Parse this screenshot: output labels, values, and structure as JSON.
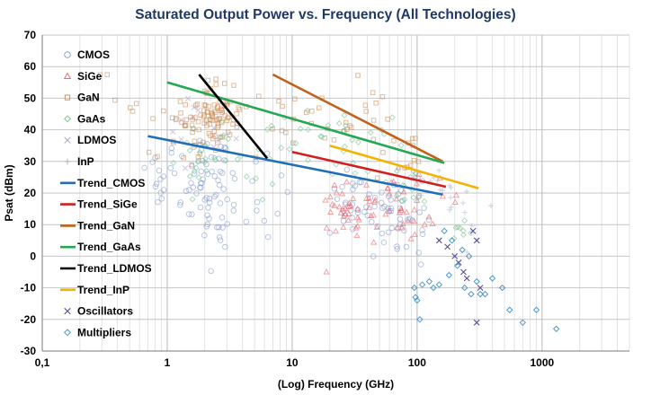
{
  "chart_data": {
    "type": "scatter",
    "title": "Saturated Output Power vs. Frequency (All Technologies)",
    "xlabel": "(Log) Frequency (GHz)",
    "ylabel": "Psat (dBm)",
    "xscale": "log",
    "xlim": [
      0.1,
      5000
    ],
    "ylim": [
      -30,
      70
    ],
    "xticks": [
      0.1,
      1,
      10,
      100,
      1000
    ],
    "xtick_labels": [
      "0,1",
      "1",
      "10",
      "100",
      "1000"
    ],
    "yticks": [
      -30,
      -20,
      -10,
      0,
      10,
      20,
      30,
      40,
      50,
      60,
      70
    ],
    "grid": true,
    "legend_position": "left",
    "colors": {
      "CMOS": "#7f97cc",
      "SiGe": "#e8595f",
      "GaN": "#c8874e",
      "GaAs": "#6cc08c",
      "LDMOS": "#b39bc8",
      "InP": "#b0b0c8",
      "Trend_CMOS": "#1f6fb8",
      "Trend_SiGe": "#d11f1f",
      "Trend_GaN": "#c0621c",
      "Trend_GaAs": "#25a853",
      "Trend_LDMOS": "#000000",
      "Trend_InP": "#f2b400",
      "Oscillators": "#4a3c8c",
      "Multipliers": "#3d8fc8"
    },
    "legend": [
      {
        "label": "CMOS",
        "kind": "marker",
        "marker": "circle"
      },
      {
        "label": "SiGe",
        "kind": "marker",
        "marker": "triangle"
      },
      {
        "label": "GaN",
        "kind": "marker",
        "marker": "square"
      },
      {
        "label": "GaAs",
        "kind": "marker",
        "marker": "diamond"
      },
      {
        "label": "LDMOS",
        "kind": "marker",
        "marker": "x"
      },
      {
        "label": "InP",
        "kind": "marker",
        "marker": "plus"
      },
      {
        "label": "Trend_CMOS",
        "kind": "line"
      },
      {
        "label": "Trend_SiGe",
        "kind": "line"
      },
      {
        "label": "Trend_GaN",
        "kind": "line"
      },
      {
        "label": "Trend_GaAs",
        "kind": "line"
      },
      {
        "label": "Trend_LDMOS",
        "kind": "line"
      },
      {
        "label": "Trend_InP",
        "kind": "line"
      },
      {
        "label": "Oscillators",
        "kind": "marker",
        "marker": "x"
      },
      {
        "label": "Multipliers",
        "kind": "marker",
        "marker": "diamond"
      }
    ],
    "trends": [
      {
        "name": "Trend_CMOS",
        "x": [
          0.7,
          160
        ],
        "y": [
          38,
          19.5
        ]
      },
      {
        "name": "Trend_SiGe",
        "x": [
          10,
          170
        ],
        "y": [
          33,
          22
        ]
      },
      {
        "name": "Trend_GaN",
        "x": [
          7,
          160
        ],
        "y": [
          57.5,
          30
        ]
      },
      {
        "name": "Trend_GaAs",
        "x": [
          1,
          165
        ],
        "y": [
          55,
          29.5
        ]
      },
      {
        "name": "Trend_LDMOS",
        "x": [
          1.8,
          6.3
        ],
        "y": [
          57.5,
          31
        ]
      },
      {
        "name": "Trend_InP",
        "x": [
          20,
          310
        ],
        "y": [
          35,
          21.5
        ]
      }
    ],
    "series": [
      {
        "name": "CMOS",
        "clusters": [
          [
            0.85,
            25,
            0.08,
            6,
            16
          ],
          [
            1.9,
            23,
            0.12,
            8,
            30
          ],
          [
            2.5,
            22,
            0.1,
            10,
            28
          ],
          [
            5,
            20,
            0.15,
            8,
            14
          ],
          [
            28,
            17,
            0.12,
            7,
            25
          ],
          [
            60,
            14,
            0.12,
            8,
            28
          ],
          [
            90,
            13,
            0.1,
            9,
            20
          ],
          [
            2.4,
            2,
            0.06,
            5,
            6
          ]
        ]
      },
      {
        "name": "SiGe",
        "clusters": [
          [
            25,
            16,
            0.08,
            5,
            22
          ],
          [
            40,
            14,
            0.1,
            6,
            18
          ],
          [
            60,
            16,
            0.08,
            5,
            16
          ],
          [
            90,
            12,
            0.1,
            6,
            12
          ],
          [
            150,
            18,
            0.08,
            4,
            6
          ]
        ]
      },
      {
        "name": "GaN",
        "clusters": [
          [
            2.1,
            43,
            0.1,
            5,
            70
          ],
          [
            3,
            47,
            0.1,
            5,
            26
          ],
          [
            1.2,
            40,
            0.12,
            6,
            14
          ],
          [
            0.35,
            52,
            0.12,
            5,
            6
          ],
          [
            10,
            42,
            0.18,
            6,
            16
          ],
          [
            35,
            42,
            0.15,
            6,
            18
          ],
          [
            80,
            32,
            0.12,
            4,
            10
          ]
        ]
      },
      {
        "name": "GaAs",
        "clusters": [
          [
            2,
            32,
            0.12,
            6,
            24
          ],
          [
            8,
            33,
            0.15,
            6,
            16
          ],
          [
            30,
            34,
            0.15,
            5,
            22
          ],
          [
            90,
            24,
            0.12,
            6,
            14
          ],
          [
            220,
            8,
            0.05,
            3,
            8
          ]
        ]
      },
      {
        "name": "LDMOS",
        "clusters": [
          [
            1.5,
            38,
            0.12,
            6,
            8
          ],
          [
            3,
            35,
            0.1,
            4,
            5
          ]
        ]
      },
      {
        "name": "InP",
        "clusters": [
          [
            150,
            22,
            0.1,
            4,
            10
          ],
          [
            250,
            15,
            0.1,
            5,
            8
          ]
        ]
      },
      {
        "name": "Oscillators",
        "x": [
          150,
          175,
          200,
          215,
          235,
          250,
          280,
          300,
          320,
          300
        ],
        "y": [
          5,
          3,
          0,
          -2,
          -5,
          -7,
          8,
          5,
          -10,
          -21
        ]
      },
      {
        "name": "Multipliers",
        "x": [
          95,
          97,
          100,
          110,
          125,
          150,
          180,
          210,
          240,
          270,
          300,
          320,
          350,
          400,
          480,
          550,
          700,
          900,
          1300,
          105,
          135,
          165,
          190,
          230,
          260
        ],
        "y": [
          -10,
          -13,
          -14,
          -9,
          -8,
          -9,
          -6,
          -3,
          -10,
          -12,
          -8,
          -12,
          -12,
          -7,
          -10,
          -17,
          -21,
          -17,
          -23,
          -20,
          -10,
          8,
          5,
          2,
          0
        ]
      }
    ]
  }
}
